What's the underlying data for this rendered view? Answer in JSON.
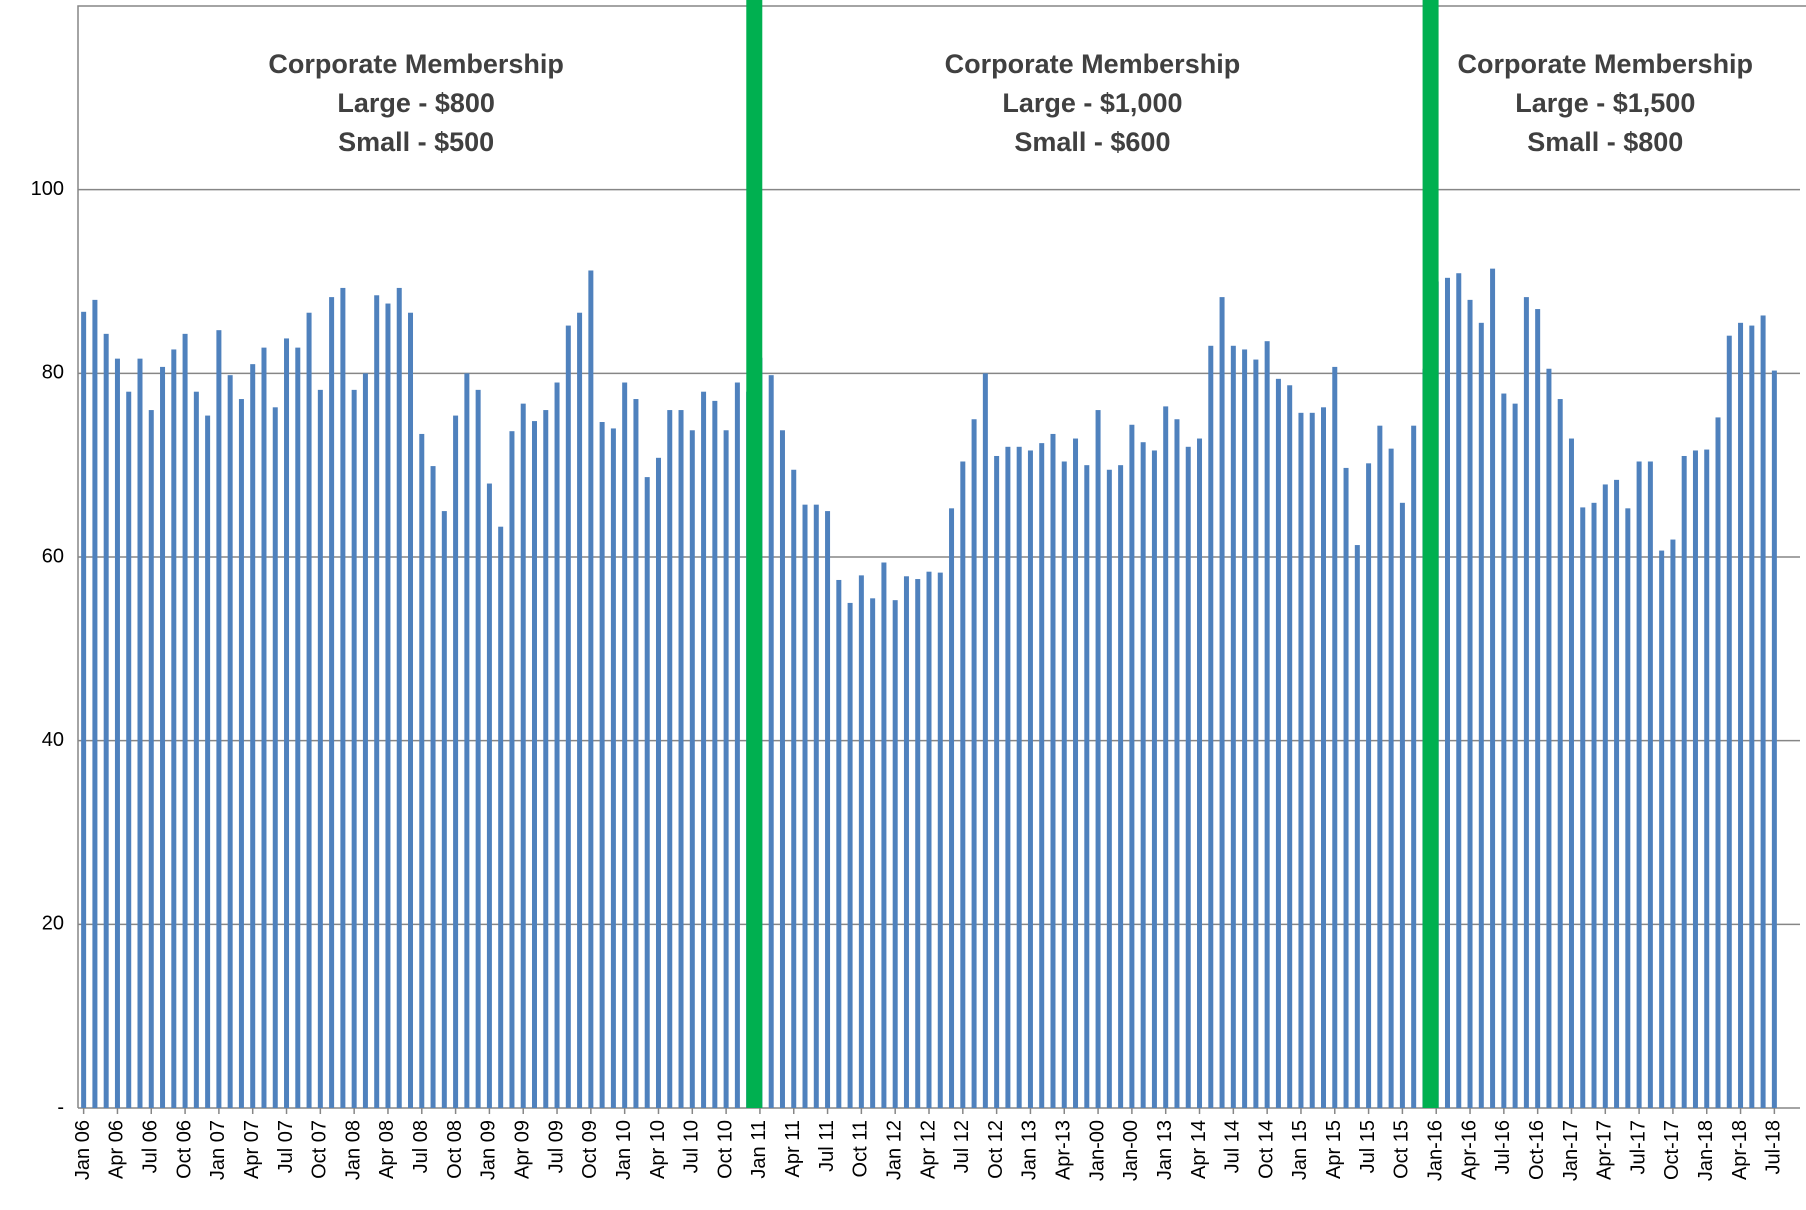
{
  "chart_data": {
    "type": "bar",
    "categories": [
      "Jan 06",
      null,
      null,
      "Apr 06",
      null,
      null,
      "Jul 06",
      null,
      null,
      "Oct 06",
      null,
      null,
      "Jan 07",
      null,
      null,
      "Apr 07",
      null,
      null,
      "Jul 07",
      null,
      null,
      "Oct 07",
      null,
      null,
      "Jan 08",
      null,
      null,
      "Apr 08",
      null,
      null,
      "Jul 08",
      null,
      null,
      "Oct 08",
      null,
      null,
      "Jan 09",
      null,
      null,
      "Apr 09",
      null,
      null,
      "Jul 09",
      null,
      null,
      "Oct 09",
      null,
      null,
      "Jan 10",
      null,
      null,
      "Apr 10",
      null,
      null,
      "Jul 10",
      null,
      null,
      "Oct 10",
      null,
      null,
      "Jan 11",
      null,
      null,
      "Apr 11",
      null,
      null,
      "Jul 11",
      null,
      null,
      "Oct 11",
      null,
      null,
      "Jan 12",
      null,
      null,
      "Apr 12",
      null,
      null,
      "Jul 12",
      null,
      null,
      "Oct 12",
      null,
      null,
      "Jan 13",
      null,
      null,
      "Apr-13",
      null,
      null,
      "Jan-00",
      null,
      null,
      "Jan-00",
      null,
      null,
      "Jan 13",
      null,
      null,
      "Apr 14",
      null,
      null,
      "Jul 14",
      null,
      null,
      "Oct 14",
      null,
      null,
      "Jan 15",
      null,
      null,
      "Apr 15",
      null,
      null,
      "Jul 15",
      null,
      null,
      "Oct 15",
      null,
      null,
      "Jan-16",
      null,
      null,
      "Apr-16",
      null,
      null,
      "Jul-16",
      null,
      null,
      "Oct-16",
      null,
      null,
      "Jan-17",
      null,
      null,
      "Apr-17",
      null,
      null,
      "Jul-17",
      null,
      null,
      "Oct-17",
      null,
      null,
      "Jan-18",
      null,
      null,
      "Apr-18",
      null,
      null,
      "Jul-18"
    ],
    "values": [
      86.7,
      88,
      84.3,
      81.6,
      78,
      81.6,
      76,
      80.7,
      82.6,
      84.3,
      78,
      75.4,
      84.7,
      79.8,
      77.2,
      81,
      82.8,
      76.3,
      83.8,
      82.8,
      86.6,
      78.2,
      88.3,
      89.3,
      78.2,
      80,
      88.5,
      87.6,
      89.3,
      86.6,
      73.4,
      69.9,
      65,
      75.4,
      80,
      78.2,
      68,
      63.3,
      73.7,
      76.7,
      74.8,
      76,
      79,
      85.2,
      86.6,
      91.2,
      74.7,
      74,
      79,
      77.2,
      68.7,
      70.8,
      76,
      76,
      73.8,
      78,
      77,
      73.8,
      79,
      78,
      81.7,
      79.8,
      73.8,
      69.5,
      65.7,
      65.7,
      65,
      57.5,
      55,
      58,
      55.5,
      59.4,
      55.3,
      57.9,
      57.6,
      58.4,
      58.3,
      65.3,
      70.4,
      75,
      80,
      71,
      72,
      72,
      71.6,
      72.4,
      73.4,
      70.4,
      72.9,
      70,
      76,
      69.5,
      70,
      74.4,
      72.5,
      71.6,
      76.4,
      75,
      72,
      72.9,
      83,
      88.3,
      83,
      82.6,
      81.5,
      83.5,
      79.4,
      78.7,
      75.7,
      75.7,
      76.3,
      80.7,
      69.7,
      61.3,
      70.2,
      74.3,
      71.8,
      65.9,
      74.3,
      80.5,
      90,
      90.4,
      90.9,
      88,
      85.5,
      91.4,
      77.8,
      76.7,
      88.3,
      87,
      80.5,
      77.2,
      72.9,
      65.4,
      65.9,
      67.9,
      68.4,
      65.3,
      70.4,
      70.4,
      60.7,
      61.9,
      71,
      71.6,
      71.7,
      75.2,
      84.1,
      85.5,
      85.2,
      86.3,
      80.3
    ],
    "color": "#4f81bd",
    "ylim": [
      0,
      120
    ],
    "yticks": [
      {
        "value": 0,
        "label": "-"
      },
      20,
      40,
      60,
      80,
      100
    ],
    "grid": true,
    "dividers": [
      "Jan 11",
      "Jan-16"
    ],
    "divider_color": "#00b050",
    "annotations": [
      {
        "lines": [
          "Corporate Membership",
          "Large - $800",
          "Small - $500"
        ]
      },
      {
        "lines": [
          "Corporate Membership",
          "Large - $1,000",
          "Small - $600"
        ]
      },
      {
        "lines": [
          "Corporate Membership",
          "Large - $1,500",
          "Small - $800"
        ]
      }
    ]
  }
}
